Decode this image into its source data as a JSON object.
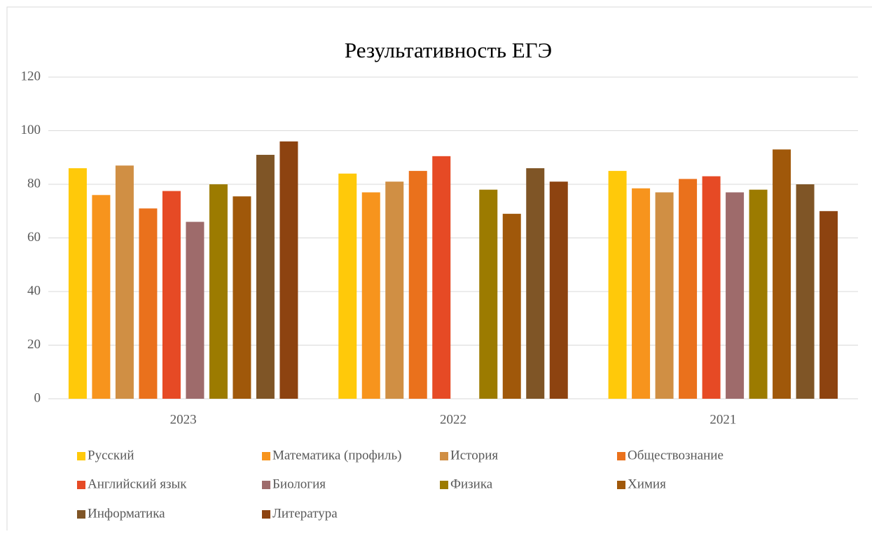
{
  "chart_data": {
    "type": "bar",
    "title": "Результативность ЕГЭ",
    "categories": [
      "2023",
      "2022",
      "2021"
    ],
    "series": [
      {
        "name": "Русский",
        "color": "#ffc90a",
        "values": [
          86,
          84,
          85
        ]
      },
      {
        "name": "Математика (профиль)",
        "color": "#f7941d",
        "values": [
          76,
          77,
          78.5
        ]
      },
      {
        "name": "История",
        "color": "#d08f44",
        "values": [
          87,
          81,
          77
        ]
      },
      {
        "name": "Обществознание",
        "color": "#ea711c",
        "values": [
          71,
          85,
          82
        ]
      },
      {
        "name": "Английский язык",
        "color": "#e64a25",
        "values": [
          77.5,
          90.5,
          83
        ]
      },
      {
        "name": "Биология",
        "color": "#9e6b6b",
        "values": [
          66,
          null,
          77
        ]
      },
      {
        "name": "Физика",
        "color": "#9c7b00",
        "values": [
          80,
          78,
          78
        ]
      },
      {
        "name": "Химия",
        "color": "#a0580a",
        "values": [
          75.5,
          69,
          93
        ]
      },
      {
        "name": "Информатика",
        "color": "#7f5526",
        "values": [
          91,
          86,
          80
        ]
      },
      {
        "name": "Литература",
        "color": "#8d4310",
        "values": [
          96,
          81,
          70
        ]
      }
    ],
    "ylim": [
      0,
      120
    ],
    "yticks": [
      0,
      20,
      40,
      60,
      80,
      100,
      120
    ],
    "grid": true,
    "legend": "bottom"
  }
}
